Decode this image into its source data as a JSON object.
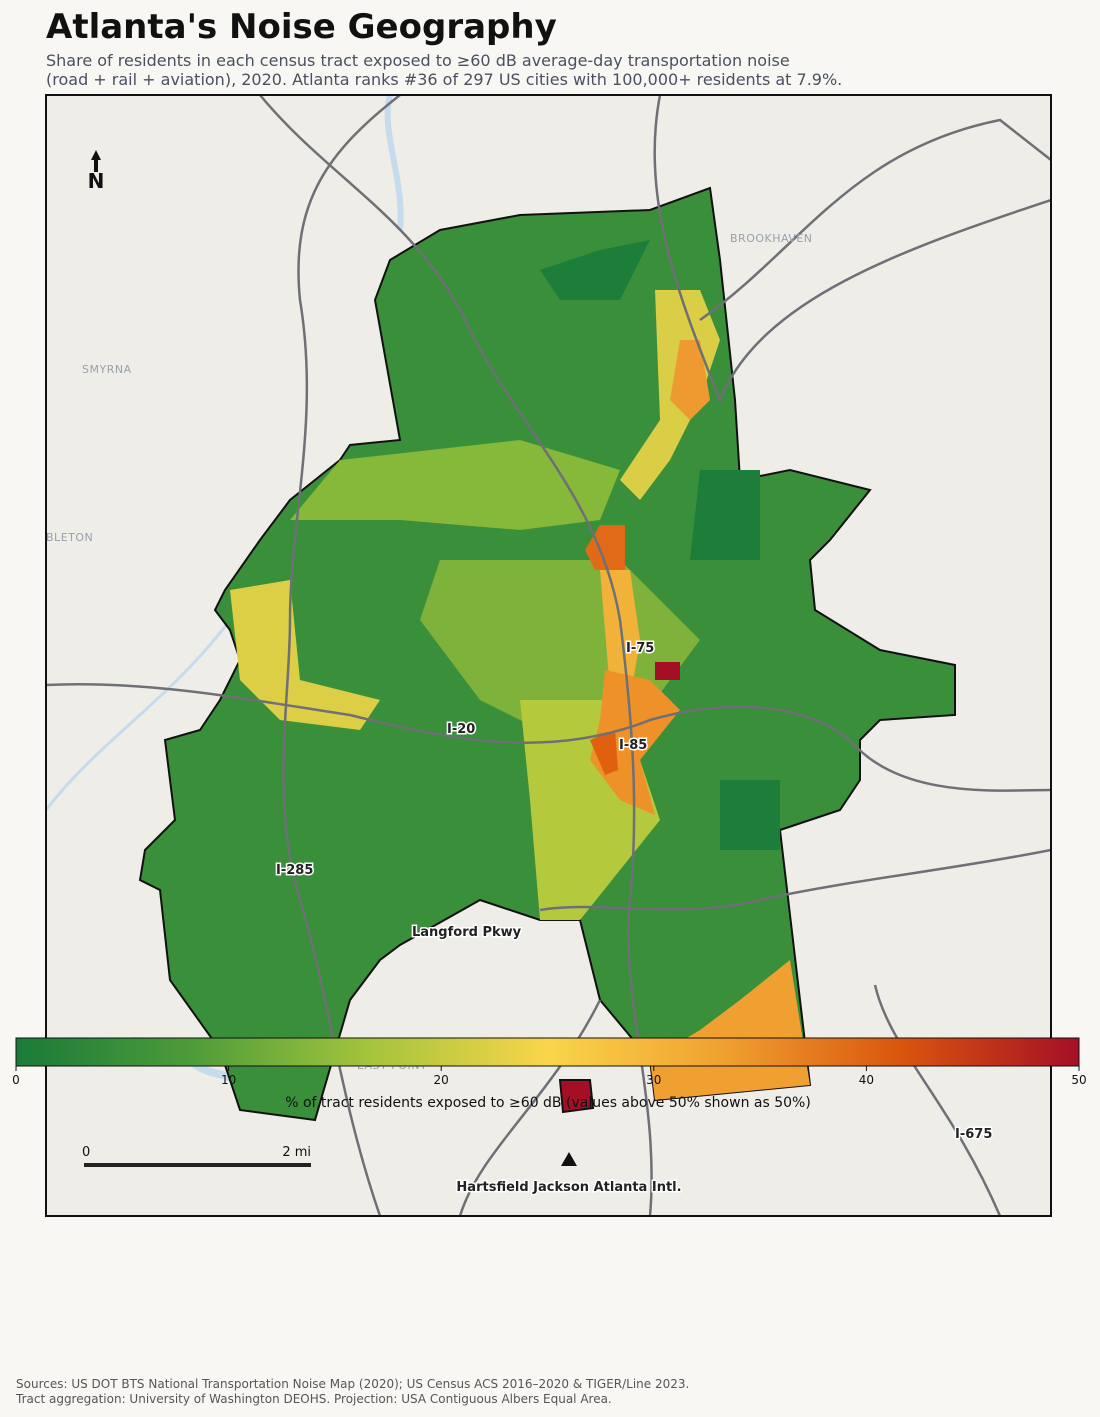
{
  "title": "Atlanta's Noise Geography",
  "subtitle": [
    "Share of residents in each census tract exposed to ≥60 dB average-day transportation noise",
    "(road + rail + aviation), 2020. Atlanta ranks #36 of 297 US cities with 100,000+ residents at 7.9%."
  ],
  "map": {
    "north": "N",
    "places": [
      "BROOKHAVEN",
      "SMYRNA",
      "MABLETON",
      "EAST POINT"
    ],
    "roads": [
      "I-75",
      "I-20",
      "I-85",
      "I-285",
      "Langford Pkwy",
      "I-675"
    ],
    "airport": "Hartsfield Jackson Atlanta Intl.",
    "scale_start": "0",
    "scale_end": "2 mi"
  },
  "colorbar": {
    "label": "% of tract residents exposed to ≥60 dB (values above 50% shown as 50%)",
    "lim": [
      0,
      50
    ],
    "ticks": [
      0,
      10,
      20,
      30,
      40,
      50
    ],
    "colors": [
      "#1a7a38",
      "#4e9c3a",
      "#a4c43c",
      "#f9d54a",
      "#f0a030",
      "#d9550e",
      "#a50f26"
    ]
  },
  "footer": [
    "Sources: US DOT BTS National Transportation Noise Map (2020); US Census ACS 2016–2020 & TIGER/Line 2023.",
    "Tract aggregation: University of Washington DEOHS. Projection: USA Contiguous Albers Equal Area."
  ]
}
